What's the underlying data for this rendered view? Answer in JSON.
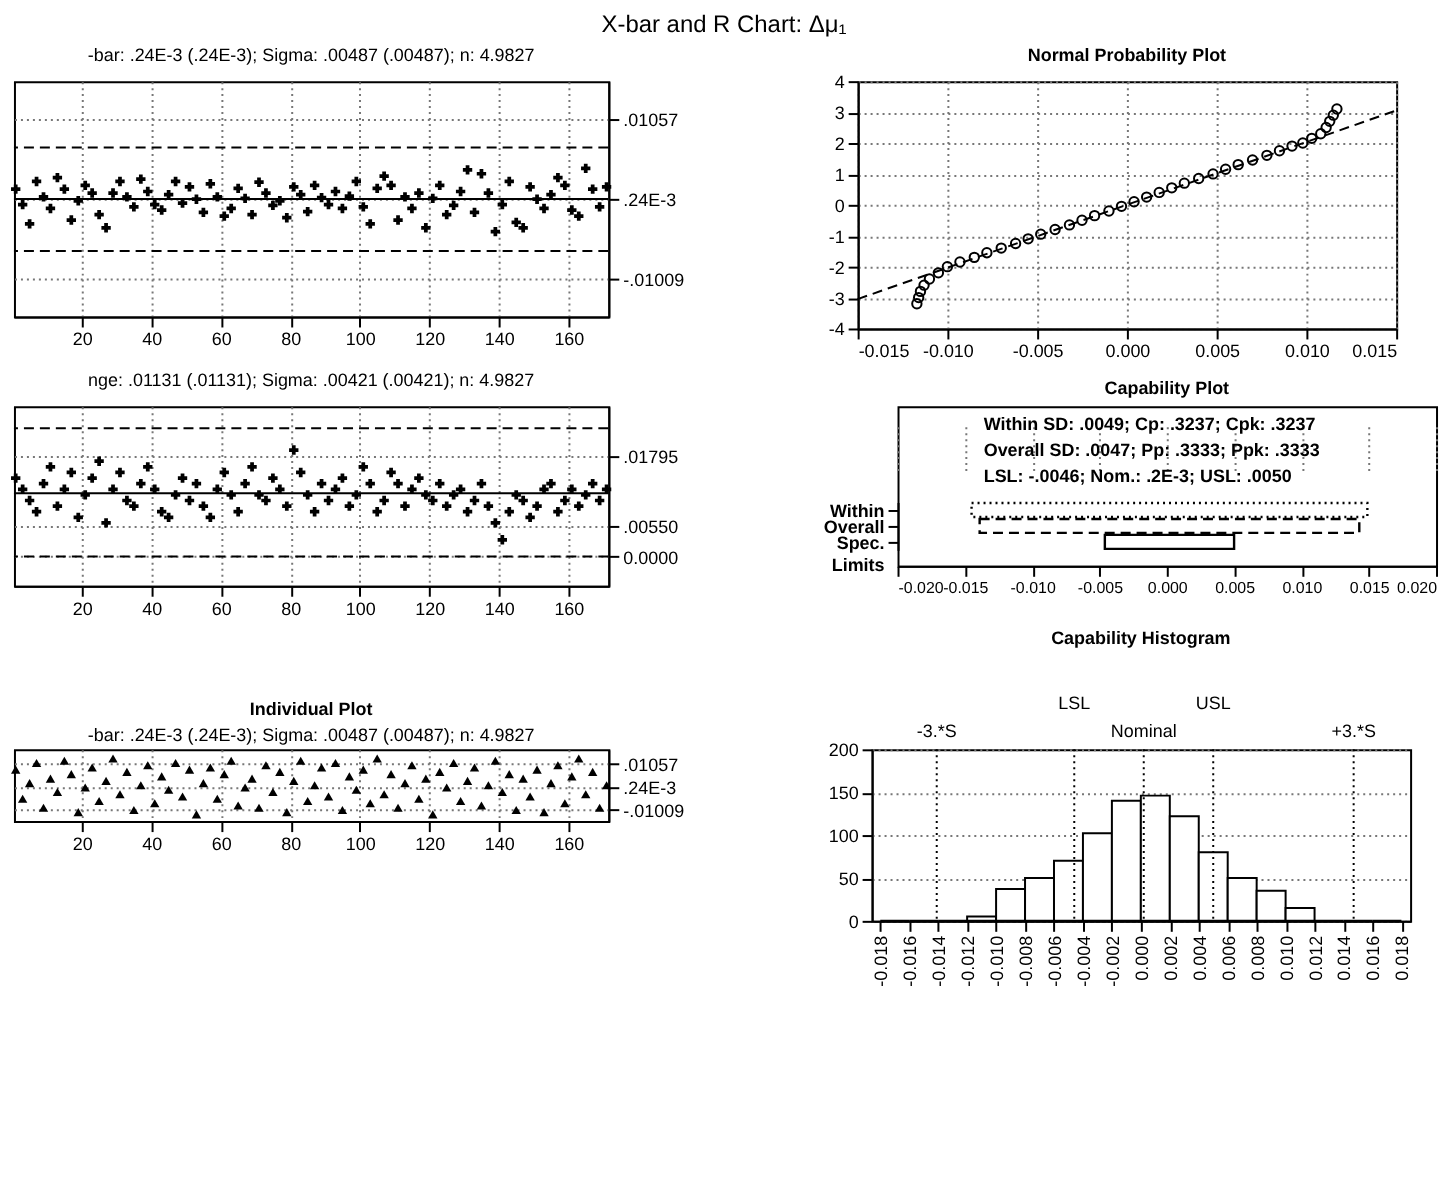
{
  "chart_data": [
    {
      "type": "scatter",
      "title": "X-bar and R Chart: Δμ₁",
      "subtitle": "-bar: .24E-3 (.24E-3); Sigma: .00487 (.00487); n: 4.9827",
      "x": [
        1,
        3,
        5,
        7,
        9,
        11,
        13,
        15,
        17,
        19,
        21,
        23,
        25,
        27,
        29,
        31,
        33,
        35,
        37,
        39,
        41,
        43,
        45,
        47,
        49,
        51,
        53,
        55,
        57,
        59,
        61,
        63,
        65,
        67,
        69,
        71,
        73,
        75,
        77,
        79,
        81,
        83,
        85,
        87,
        89,
        91,
        93,
        95,
        97,
        99,
        101,
        103,
        105,
        107,
        109,
        111,
        113,
        115,
        117,
        119,
        121,
        123,
        125,
        127,
        129,
        131,
        133,
        135,
        137,
        139,
        141,
        143,
        145,
        147,
        149,
        151,
        153,
        155,
        157,
        159,
        161,
        163,
        165,
        167,
        169,
        171
      ],
      "series": [
        {
          "color": "#000000",
          "values": [
            0.0015,
            -0.0005,
            -0.003,
            0.0025,
            0.0005,
            -0.001,
            0.003,
            0.0015,
            -0.0025,
            0,
            0.002,
            0.001,
            -0.0018,
            -0.0035,
            0.001,
            0.0025,
            0.0005,
            -0.0008,
            0.0028,
            0.0012,
            -0.0005,
            -0.0012,
            0.0008,
            0.0025,
            -0.0003,
            0.0018,
            0.0002,
            -0.0015,
            0.0022,
            0.0005,
            -0.002,
            -0.001,
            0.0016,
            0.0003,
            -0.0018,
            0.0024,
            0.001,
            -0.0006,
            0,
            -0.0022,
            0.0018,
            0.0008,
            -0.0014,
            0.002,
            0.0004,
            -0.0005,
            0.0012,
            -0.001,
            0.0006,
            0.0025,
            -0.0008,
            -0.003,
            0.0016,
            0.0032,
            0.002,
            -0.0025,
            0.0005,
            -0.001,
            0.001,
            -0.0035,
            0.0003,
            0.002,
            -0.0018,
            -0.0006,
            0.0012,
            0.004,
            -0.0015,
            0.0035,
            0.001,
            -0.004,
            -0.0005,
            0.0025,
            -0.0028,
            -0.0035,
            0.0018,
            0.0002,
            -0.001,
            0.0008,
            0.003,
            0.002,
            -0.0012,
            -0.002,
            0.0042,
            0.0015,
            -0.0008,
            0.0018
          ]
        }
      ],
      "xlim": [
        0.5,
        171.5
      ],
      "ylim": [
        -0.015,
        0.0155
      ],
      "xticks": [
        20,
        40,
        60,
        80,
        100,
        120,
        140,
        160
      ],
      "yticks": [
        {
          "value": 0.01057,
          "label": ".01057"
        },
        {
          "value": 0.00024,
          "label": ".24E-3"
        },
        {
          "value": -0.01009,
          "label": "-.01009"
        }
      ],
      "grid": true,
      "marker": "cross",
      "ref_lines": [
        {
          "axis": "y",
          "value": 0.0069,
          "line_style": "dashed"
        },
        {
          "axis": "y",
          "value": 0.00024,
          "line_style": "solid"
        },
        {
          "axis": "y",
          "value": -0.0065,
          "line_style": "dashed"
        }
      ]
    },
    {
      "type": "scatter",
      "title": "Normal Probability Plot",
      "series": [
        {
          "color": "#000000",
          "marker": "circle",
          "x": [
            -0.0117,
            -0.0116,
            -0.0115,
            -0.0113,
            -0.011,
            -0.0105,
            -0.01,
            -0.0093,
            -0.0085,
            -0.0078,
            -0.007,
            -0.0062,
            -0.0055,
            -0.0048,
            -0.004,
            -0.0032,
            -0.0025,
            -0.0018,
            -0.001,
            -0.0003,
            0.0004,
            0.0011,
            0.0018,
            0.0025,
            0.0032,
            0.004,
            0.0048,
            0.0055,
            0.0062,
            0.007,
            0.0078,
            0.0085,
            0.0092,
            0.0098,
            0.0103,
            0.0108,
            0.0111,
            0.0113,
            0.0115,
            0.0117
          ],
          "values": [
            -3.2,
            -3.0,
            -2.8,
            -2.6,
            -2.4,
            -2.2,
            -2.0,
            -1.85,
            -1.7,
            -1.55,
            -1.4,
            -1.25,
            -1.1,
            -0.95,
            -0.8,
            -0.65,
            -0.5,
            -0.35,
            -0.2,
            -0.05,
            0.1,
            0.25,
            0.4,
            0.55,
            0.7,
            0.85,
            1.0,
            1.15,
            1.3,
            1.45,
            1.6,
            1.75,
            1.9,
            2.0,
            2.15,
            2.3,
            2.5,
            2.7,
            2.9,
            3.1
          ]
        },
        {
          "type": "line",
          "color": "#000000",
          "line_style": "dashed",
          "x": [
            -0.015,
            0.015
          ],
          "values": [
            -3.05,
            3.05
          ]
        }
      ],
      "xlim": [
        -0.015,
        0.015
      ],
      "ylim": [
        -4,
        4
      ],
      "xticks": [
        -0.015,
        {
          "value": -0.01,
          "label": "-0.010"
        },
        -0.005,
        {
          "value": 0,
          "label": "0.000"
        },
        0.005,
        {
          "value": 0.01,
          "label": "0.010"
        },
        0.015
      ],
      "yticks": [
        -4,
        -3,
        -2,
        -1,
        0,
        1,
        2,
        3,
        4
      ],
      "grid": true
    },
    {
      "type": "scatter",
      "subtitle": "nge: .01131 (.01131); Sigma: .00421 (.00421); n: 4.9827",
      "x": [
        1,
        3,
        5,
        7,
        9,
        11,
        13,
        15,
        17,
        19,
        21,
        23,
        25,
        27,
        29,
        31,
        33,
        35,
        37,
        39,
        41,
        43,
        45,
        47,
        49,
        51,
        53,
        55,
        57,
        59,
        61,
        63,
        65,
        67,
        69,
        71,
        73,
        75,
        77,
        79,
        81,
        83,
        85,
        87,
        89,
        91,
        93,
        95,
        97,
        99,
        101,
        103,
        105,
        107,
        109,
        111,
        113,
        115,
        117,
        119,
        121,
        123,
        125,
        127,
        129,
        131,
        133,
        135,
        137,
        139,
        141,
        143,
        145,
        147,
        149,
        151,
        153,
        155,
        157,
        159,
        161,
        163,
        165,
        167,
        169,
        171
      ],
      "series": [
        {
          "color": "#000000",
          "values": [
            0.014,
            0.012,
            0.01,
            0.008,
            0.013,
            0.016,
            0.009,
            0.012,
            0.015,
            0.007,
            0.011,
            0.014,
            0.017,
            0.006,
            0.012,
            0.015,
            0.01,
            0.009,
            0.013,
            0.016,
            0.012,
            0.008,
            0.007,
            0.011,
            0.014,
            0.01,
            0.013,
            0.009,
            0.007,
            0.012,
            0.015,
            0.011,
            0.008,
            0.013,
            0.016,
            0.011,
            0.01,
            0.014,
            0.012,
            0.009,
            0.019,
            0.015,
            0.011,
            0.008,
            0.013,
            0.01,
            0.012,
            0.014,
            0.009,
            0.011,
            0.016,
            0.013,
            0.008,
            0.01,
            0.015,
            0.013,
            0.009,
            0.012,
            0.014,
            0.011,
            0.01,
            0.013,
            0.009,
            0.011,
            0.012,
            0.008,
            0.01,
            0.013,
            0.009,
            0.006,
            0.003,
            0.008,
            0.011,
            0.01,
            0.007,
            0.009,
            0.012,
            0.013,
            0.008,
            0.01,
            0.012,
            0.009,
            0.011,
            0.013,
            0.01,
            0.012
          ]
        }
      ],
      "xlim": [
        0.5,
        171.5
      ],
      "ylim": [
        -0.0052,
        0.0268
      ],
      "xticks": [
        20,
        40,
        60,
        80,
        100,
        120,
        140,
        160
      ],
      "yticks": [
        {
          "value": 0.01795,
          "label": ".01795"
        },
        {
          "value": 0.0055,
          "label": ".00550"
        },
        {
          "value": 0,
          "label": "0.0000"
        }
      ],
      "grid": true,
      "marker": "cross",
      "ref_lines": [
        {
          "axis": "y",
          "value": 0.0229,
          "line_style": "dashed"
        },
        {
          "axis": "y",
          "value": 0.01131,
          "line_style": "solid"
        },
        {
          "axis": "y",
          "value": 0,
          "line_style": "dashed"
        }
      ]
    },
    {
      "type": "bar",
      "orientation": "horizontal",
      "title": "Capability Plot",
      "annotations": [
        "Within SD: .0049; Cp: .3237; Cpk: .3237",
        "Overall SD: .0047; Pp: .3333; Ppk: .3333",
        "LSL: -.0046; Nom.: .2E-3; USL: .0050"
      ],
      "categories": [
        "Within",
        "Overall",
        "Spec. Limits"
      ],
      "base": [
        -0.0145,
        -0.0139,
        -0.0046
      ],
      "values": [
        0.0294,
        0.0282,
        0.0096
      ],
      "colors": [
        "#000000",
        "#000000",
        "#000000"
      ],
      "xlim": [
        -0.02,
        0.02
      ],
      "xticks": [
        {
          "value": -0.02,
          "label": "-0.020"
        },
        -0.015,
        {
          "value": -0.01,
          "label": "-0.010"
        },
        -0.005,
        {
          "value": 0,
          "label": "0.000"
        },
        0.005,
        {
          "value": 0.01,
          "label": "0.010"
        },
        0.015,
        {
          "value": 0.02,
          "label": "0.020"
        }
      ],
      "grid": "x"
    },
    {
      "type": "scatter",
      "title": "Individual Plot",
      "subtitle": "-bar: .24E-3 (.24E-3); Sigma: .00487 (.00487); n: 4.9827",
      "x": [
        1,
        3,
        5,
        7,
        9,
        11,
        13,
        15,
        17,
        19,
        21,
        23,
        25,
        27,
        29,
        31,
        33,
        35,
        37,
        39,
        41,
        43,
        45,
        47,
        49,
        51,
        53,
        55,
        57,
        59,
        61,
        63,
        65,
        67,
        69,
        71,
        73,
        75,
        77,
        79,
        81,
        83,
        85,
        87,
        89,
        91,
        93,
        95,
        97,
        99,
        101,
        103,
        105,
        107,
        109,
        111,
        113,
        115,
        117,
        119,
        121,
        123,
        125,
        127,
        129,
        131,
        133,
        135,
        137,
        139,
        141,
        143,
        145,
        147,
        149,
        151,
        153,
        155,
        157,
        159,
        161,
        163,
        165,
        167,
        169,
        171
      ],
      "series": [
        {
          "color": "#000000",
          "values": [
            0.008,
            -0.005,
            0.002,
            0.011,
            -0.009,
            0.004,
            -0.002,
            0.012,
            0.006,
            -0.011,
            0,
            0.009,
            -0.006,
            0.003,
            0.013,
            -0.003,
            0.007,
            -0.01,
            0.001,
            0.01,
            -0.007,
            0.005,
            -0.001,
            0.011,
            -0.004,
            0.008,
            -0.012,
            0.002,
            0.009,
            -0.005,
            0.006,
            0.012,
            -0.008,
            0,
            0.004,
            -0.009,
            0.01,
            -0.002,
            0.007,
            -0.011,
            0.003,
            0.012,
            -0.006,
            0.001,
            0.009,
            -0.004,
            0.011,
            -0.01,
            0.005,
            -0.001,
            0.008,
            -0.007,
            0.013,
            -0.003,
            0.006,
            -0.009,
            0.002,
            0.01,
            -0.005,
            0.004,
            -0.012,
            0.007,
            0,
            0.011,
            -0.006,
            0.003,
            0.009,
            -0.008,
            0.001,
            0.012,
            -0.002,
            0.006,
            -0.01,
            0.004,
            -0.004,
            0.008,
            -0.011,
            0.002,
            0.01,
            -0.007,
            0.005,
            0.013,
            -0.003,
            0.007,
            -0.009,
            0.001
          ]
        }
      ],
      "xlim": [
        0.5,
        171.5
      ],
      "ylim": [
        -0.015,
        0.0171
      ],
      "xticks": [
        20,
        40,
        60,
        80,
        100,
        120,
        140,
        160
      ],
      "yticks": [
        {
          "value": 0.01057,
          "label": ".01057"
        },
        {
          "value": 0.00024,
          "label": ".24E-3"
        },
        {
          "value": -0.01009,
          "label": "-.01009"
        }
      ],
      "grid": true,
      "marker": "triangle"
    },
    {
      "type": "histogram",
      "title": "Capability Histogram",
      "color": "#ffffff",
      "bins": [
        -0.018,
        -0.016,
        -0.014,
        -0.012,
        -0.01,
        -0.008,
        -0.006,
        -0.004,
        -0.002,
        0,
        0.002,
        0.004,
        0.006,
        0.008,
        0.01,
        0.012,
        0.014,
        0.016,
        0.018
      ],
      "values": [
        0,
        0,
        0,
        5,
        37,
        50,
        70,
        102,
        140,
        146,
        122,
        80,
        50,
        35,
        15,
        0,
        0,
        0
      ],
      "xlim": [
        -0.0186,
        0.0186
      ],
      "ylim": [
        0,
        200
      ],
      "xticks": [
        -0.018,
        -0.016,
        -0.014,
        -0.012,
        {
          "value": -0.01,
          "label": "-0.010"
        },
        -0.008,
        -0.006,
        -0.004,
        -0.002,
        {
          "value": 0,
          "label": "0.000"
        },
        0.002,
        0.004,
        0.006,
        0.008,
        {
          "value": 0.01,
          "label": "0.010"
        },
        0.012,
        0.014,
        0.016,
        0.018
      ],
      "yticks": [
        0,
        50,
        100,
        150,
        200
      ],
      "grid": "y",
      "ref_lines": [
        {
          "axis": "x",
          "value": -0.0141,
          "label": "-3.*S",
          "line_style": "dotted"
        },
        {
          "axis": "x",
          "value": -0.0046,
          "label": "LSL",
          "line_style": "dotted"
        },
        {
          "axis": "x",
          "value": 0.0002,
          "label": "Nominal",
          "line_style": "dotted"
        },
        {
          "axis": "x",
          "value": 0.005,
          "label": "USL",
          "line_style": "dotted"
        },
        {
          "axis": "x",
          "value": 0.0147,
          "label": "+3.*S",
          "line_style": "dotted"
        }
      ]
    }
  ]
}
